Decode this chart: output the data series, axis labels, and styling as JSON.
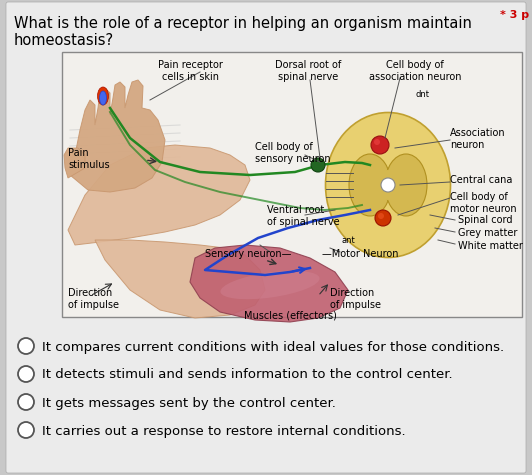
{
  "question_line1": "What is the role of a receptor in helping an organism maintain",
  "question_line2": "homeostasis?",
  "points_label": "* 3 p",
  "bg_color": "#c8c8c8",
  "card_bg": "#e8e8e8",
  "options": [
    "It compares current conditions with ideal values for those conditions.",
    "It detects stimuli and sends information to the control center.",
    "It gets messages sent by the control center.",
    "It carries out a response to restore internal conditions."
  ],
  "title_fontsize": 10.5,
  "option_fontsize": 9.5
}
